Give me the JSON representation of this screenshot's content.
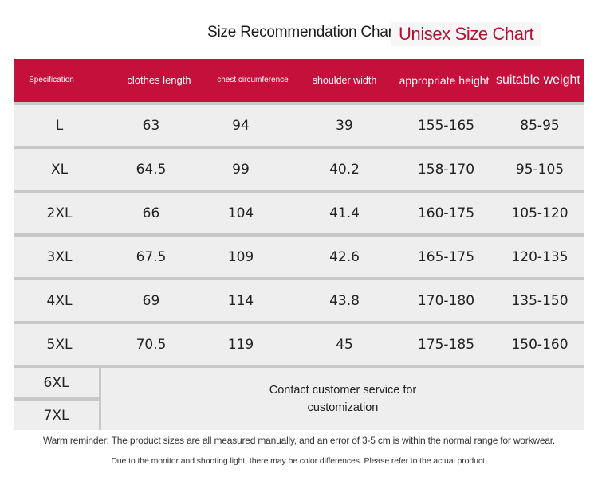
{
  "title": "Size Recommendation Chart",
  "subtitle": "Unisex Size Chart",
  "headers": {
    "spec": "Specification",
    "length": "clothes length",
    "chest": "chest circumference",
    "shoulder": "shoulder width",
    "height": "appropriate height",
    "weight": "suitable weight"
  },
  "rows": [
    {
      "size": "L",
      "length": "63",
      "chest": "94",
      "shoulder": "39",
      "height": "155-165",
      "weight": "85-95"
    },
    {
      "size": "XL",
      "length": "64.5",
      "chest": "99",
      "shoulder": "40.2",
      "height": "158-170",
      "weight": "95-105"
    },
    {
      "size": "2XL",
      "length": "66",
      "chest": "104",
      "shoulder": "41.4",
      "height": "160-175",
      "weight": "105-120"
    },
    {
      "size": "3XL",
      "length": "67.5",
      "chest": "109",
      "shoulder": "42.6",
      "height": "165-175",
      "weight": "120-135"
    },
    {
      "size": "4XL",
      "length": "69",
      "chest": "114",
      "shoulder": "43.8",
      "height": "170-180",
      "weight": "135-150"
    },
    {
      "size": "5XL",
      "length": "70.5",
      "chest": "119",
      "shoulder": "45",
      "height": "175-185",
      "weight": "150-160"
    }
  ],
  "custom_sizes": [
    "6XL",
    "7XL"
  ],
  "custom_message": "Contact customer service for customization",
  "note1": "Warm reminder: The product sizes are all measured manually, and an error of 3-5 cm is within the normal range for workwear.",
  "note2": "Due to the monitor and shooting light, there may be color differences. Please refer to the actual product.",
  "colors": {
    "header_bg": "#c4103a",
    "subtitle": "#b01032",
    "row_bg": "#eeeeee",
    "divider": "#c8c8c8"
  }
}
